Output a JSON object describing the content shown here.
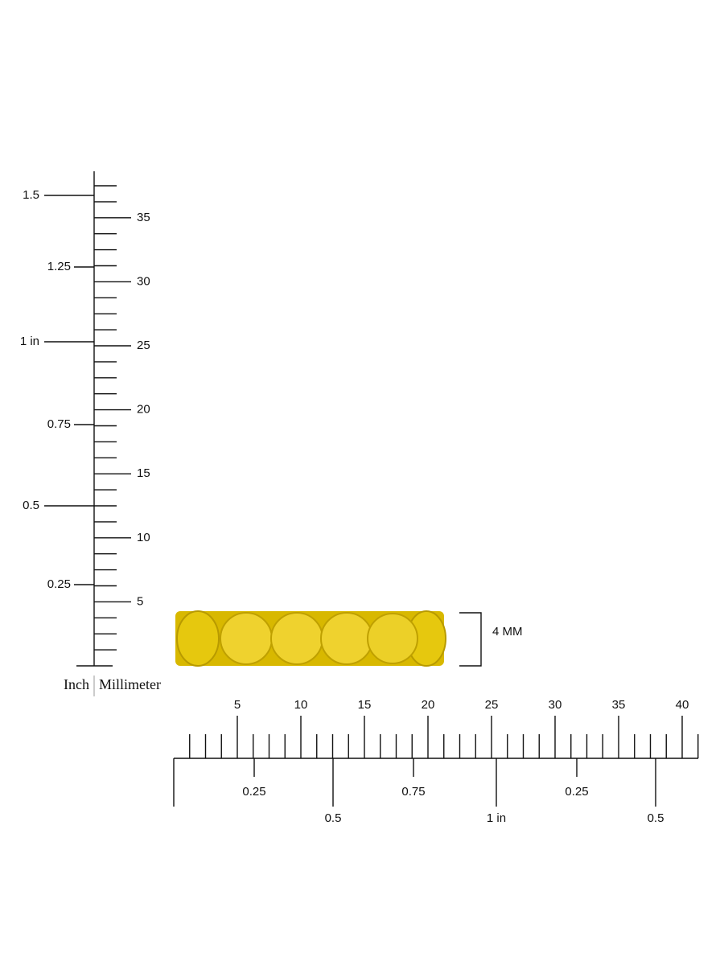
{
  "vertical_ruler": {
    "inch_labels": [
      "0.25",
      "0.5",
      "0.75",
      "1 in",
      "1.25",
      "1.5"
    ],
    "mm_labels": [
      "5",
      "10",
      "15",
      "20",
      "25",
      "30",
      "35"
    ],
    "inch_unit": "Inch",
    "mm_unit": "Millimeter"
  },
  "horizontal_ruler": {
    "mm_labels": [
      "5",
      "10",
      "15",
      "20",
      "25",
      "30",
      "35",
      "40"
    ],
    "inch_labels": [
      "0.25",
      "0.5",
      "0.75",
      "1 in",
      "0.25",
      "0.5"
    ]
  },
  "dimension": {
    "label": "4 MM"
  }
}
